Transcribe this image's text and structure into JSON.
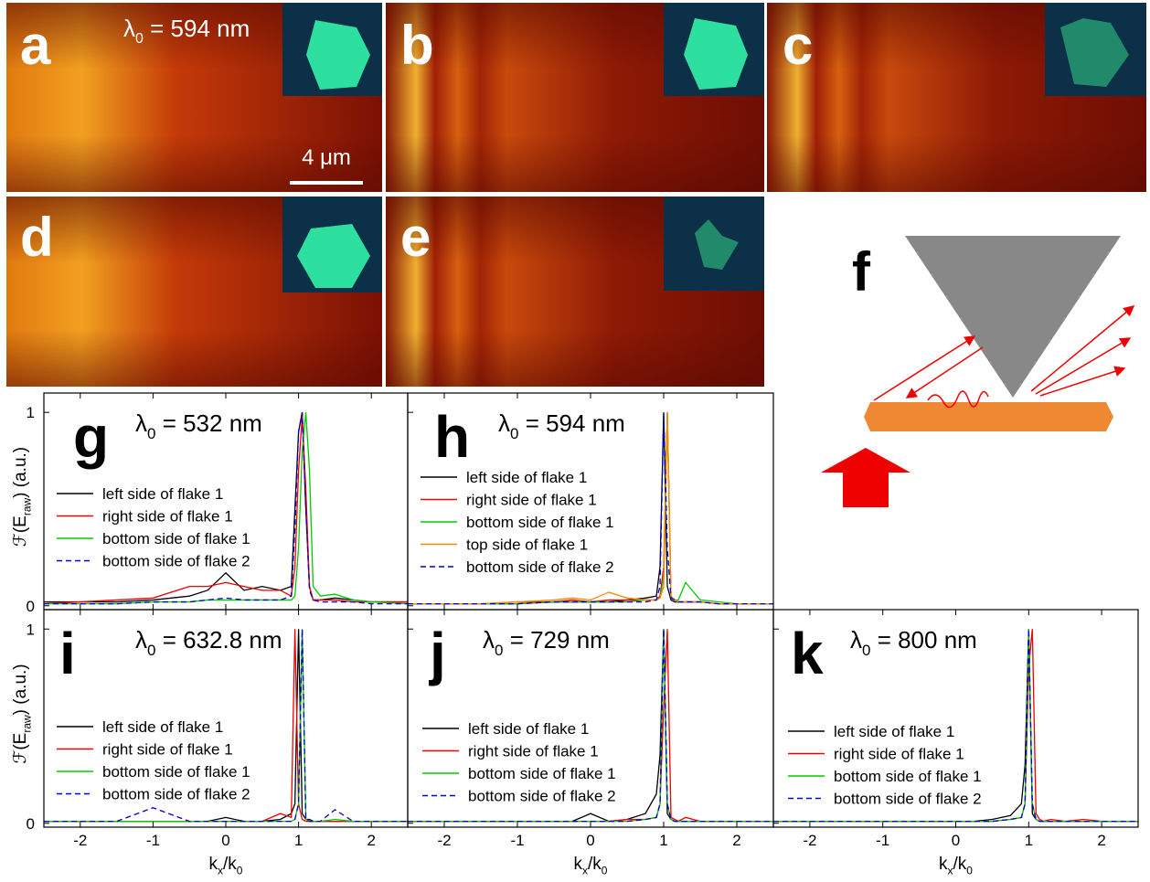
{
  "panels": [
    {
      "label": "a",
      "caption": [
        "λ",
        "0",
        " = 594 nm"
      ],
      "scale_bar": "4 μm"
    },
    {
      "label": "b"
    },
    {
      "label": "c"
    },
    {
      "label": "d"
    },
    {
      "label": "e"
    },
    {
      "label": "f"
    }
  ],
  "chart_data": [
    {
      "type": "line",
      "label": "g",
      "title": [
        "λ",
        "0",
        " = 532 nm"
      ],
      "ylabel": [
        "ℱ(E",
        "raw",
        ") (a.u.)"
      ],
      "xlim": [
        -2.5,
        2.5
      ],
      "ylim": [
        -0.02,
        1.1
      ],
      "xticks": [
        -2,
        -1,
        0,
        1,
        2
      ],
      "yticks": [
        0,
        1
      ],
      "xtick_labels": false,
      "ytick_labels": true,
      "x": [
        -2.5,
        -2,
        -1.5,
        -1,
        -0.5,
        -0.25,
        0,
        0.25,
        0.5,
        0.75,
        0.9,
        0.95,
        1,
        1.05,
        1.1,
        1.15,
        1.2,
        1.3,
        1.5,
        1.75,
        2,
        2.5
      ],
      "series": [
        {
          "name": "left side of flake 1",
          "color": "#000000",
          "style": "solid",
          "values": [
            0.02,
            0.02,
            0.02,
            0.03,
            0.05,
            0.08,
            0.17,
            0.08,
            0.1,
            0.08,
            0.1,
            0.5,
            0.9,
            1.0,
            0.5,
            0.1,
            0.03,
            0.03,
            0.04,
            0.03,
            0.02,
            0.02
          ]
        },
        {
          "name": "right side of flake 1",
          "color": "#ee0000",
          "style": "solid",
          "values": [
            0.01,
            0.02,
            0.03,
            0.04,
            0.1,
            0.1,
            0.12,
            0.1,
            0.08,
            0.08,
            0.05,
            0.2,
            0.7,
            0.98,
            0.6,
            0.1,
            0.03,
            0.03,
            0.03,
            0.02,
            0.02,
            0.02
          ]
        },
        {
          "name": "bottom side of flake 1",
          "color": "#00cc00",
          "style": "solid",
          "values": [
            0.01,
            0.01,
            0.01,
            0.02,
            0.02,
            0.03,
            0.03,
            0.03,
            0.03,
            0.03,
            0.03,
            0.05,
            0.3,
            0.8,
            1.0,
            0.7,
            0.1,
            0.05,
            0.06,
            0.03,
            0.02,
            0.01
          ]
        },
        {
          "name": "bottom side of flake 2",
          "color": "#0000cc",
          "style": "dashed",
          "values": [
            0.01,
            0.01,
            0.01,
            0.02,
            0.02,
            0.03,
            0.04,
            0.03,
            0.03,
            0.03,
            0.05,
            0.4,
            0.9,
            1.0,
            0.5,
            0.08,
            0.03,
            0.02,
            0.02,
            0.02,
            0.01,
            0.01
          ]
        }
      ]
    },
    {
      "type": "line",
      "label": "h",
      "title": [
        "λ",
        "0",
        " = 594 nm"
      ],
      "xlim": [
        -2.5,
        2.5
      ],
      "ylim": [
        -0.02,
        1.1
      ],
      "xticks": [
        -2,
        -1,
        0,
        1,
        2
      ],
      "yticks": [
        0,
        1
      ],
      "xtick_labels": false,
      "ytick_labels": false,
      "x": [
        -2.5,
        -2,
        -1.5,
        -1,
        -0.5,
        -0.25,
        0,
        0.25,
        0.5,
        0.75,
        0.9,
        0.95,
        1,
        1.05,
        1.1,
        1.15,
        1.2,
        1.3,
        1.5,
        1.75,
        2,
        2.5
      ],
      "series": [
        {
          "name": "left side of flake 1",
          "color": "#000000",
          "style": "solid",
          "values": [
            0.01,
            0.01,
            0.01,
            0.01,
            0.02,
            0.02,
            0.02,
            0.02,
            0.03,
            0.04,
            0.05,
            0.2,
            1.0,
            0.1,
            0.03,
            0.02,
            0.02,
            0.02,
            0.02,
            0.01,
            0.01,
            0.01
          ]
        },
        {
          "name": "right side of flake 1",
          "color": "#ee0000",
          "style": "solid",
          "values": [
            0.01,
            0.01,
            0.01,
            0.02,
            0.02,
            0.03,
            0.02,
            0.03,
            0.03,
            0.03,
            0.03,
            0.05,
            0.2,
            1.0,
            0.05,
            0.03,
            0.02,
            0.02,
            0.02,
            0.01,
            0.01,
            0.01
          ]
        },
        {
          "name": "bottom side of flake 1",
          "color": "#00cc00",
          "style": "solid",
          "values": [
            0.01,
            0.01,
            0.01,
            0.01,
            0.02,
            0.02,
            0.02,
            0.02,
            0.02,
            0.03,
            0.03,
            0.04,
            0.15,
            1.0,
            0.04,
            0.03,
            0.03,
            0.12,
            0.03,
            0.02,
            0.01,
            0.01
          ]
        },
        {
          "name": "top side of flake 1",
          "color": "#ff8800",
          "style": "solid",
          "values": [
            0.01,
            0.01,
            0.01,
            0.02,
            0.03,
            0.04,
            0.03,
            0.07,
            0.04,
            0.03,
            0.03,
            0.04,
            0.1,
            1.0,
            0.05,
            0.03,
            0.02,
            0.02,
            0.02,
            0.01,
            0.01,
            0.01
          ]
        },
        {
          "name": "bottom side of flake 2",
          "color": "#0000cc",
          "style": "dashed",
          "values": [
            0.01,
            0.01,
            0.01,
            0.01,
            0.02,
            0.02,
            0.02,
            0.02,
            0.02,
            0.02,
            0.03,
            0.1,
            1.0,
            0.3,
            0.04,
            0.03,
            0.02,
            0.02,
            0.02,
            0.01,
            0.01,
            0.01
          ]
        }
      ]
    },
    {
      "type": "line",
      "label": "i",
      "title": [
        "λ",
        "0",
        " = 632.8 nm"
      ],
      "ylabel": [
        "ℱ(E",
        "raw",
        ") (a.u.)"
      ],
      "xlabel": [
        "k",
        "x",
        "/k",
        "0"
      ],
      "xlim": [
        -2.5,
        2.5
      ],
      "ylim": [
        -0.02,
        1.1
      ],
      "xticks": [
        -2,
        -1,
        0,
        1,
        2
      ],
      "yticks": [
        0,
        1
      ],
      "xtick_labels": true,
      "ytick_labels": true,
      "x": [
        -2.5,
        -2,
        -1.5,
        -1,
        -0.5,
        -0.25,
        0,
        0.25,
        0.5,
        0.75,
        0.9,
        0.95,
        1,
        1.05,
        1.1,
        1.15,
        1.2,
        1.3,
        1.5,
        1.75,
        2,
        2.5
      ],
      "series": [
        {
          "name": "left side of flake 1",
          "color": "#000000",
          "style": "solid",
          "values": [
            0.01,
            0.01,
            0.01,
            0.01,
            0.01,
            0.01,
            0.03,
            0.01,
            0.01,
            0.02,
            0.05,
            0.1,
            1.0,
            0.05,
            0.02,
            0.02,
            0.01,
            0.01,
            0.01,
            0.01,
            0.01,
            0.01
          ]
        },
        {
          "name": "right side of flake 1",
          "color": "#ee0000",
          "style": "solid",
          "values": [
            0.01,
            0.01,
            0.01,
            0.01,
            0.01,
            0.01,
            0.01,
            0.01,
            0.01,
            0.05,
            0.03,
            1.0,
            0.1,
            0.02,
            0.01,
            0.01,
            0.01,
            0.01,
            0.01,
            0.01,
            0.01,
            0.01
          ]
        },
        {
          "name": "bottom side of flake 1",
          "color": "#00cc00",
          "style": "solid",
          "values": [
            0.01,
            0.01,
            0.01,
            0.01,
            0.01,
            0.01,
            0.01,
            0.01,
            0.01,
            0.01,
            0.01,
            0.02,
            0.1,
            1.0,
            0.02,
            0.01,
            0.01,
            0.01,
            0.02,
            0.01,
            0.01,
            0.01
          ]
        },
        {
          "name": "bottom side of flake 2",
          "color": "#0000cc",
          "style": "dashed",
          "values": [
            0.01,
            0.01,
            0.01,
            0.08,
            0.01,
            0.01,
            0.01,
            0.01,
            0.01,
            0.01,
            0.01,
            0.02,
            0.1,
            1.0,
            0.02,
            0.01,
            0.01,
            0.01,
            0.07,
            0.01,
            0.01,
            0.01
          ]
        }
      ]
    },
    {
      "type": "line",
      "label": "j",
      "title": [
        "λ",
        "0",
        " = 729 nm"
      ],
      "xlabel": [
        "k",
        "x",
        "/k",
        "0"
      ],
      "xlim": [
        -2.5,
        2.5
      ],
      "ylim": [
        -0.02,
        1.1
      ],
      "xticks": [
        -2,
        -1,
        0,
        1,
        2
      ],
      "yticks": [
        0,
        1
      ],
      "xtick_labels": true,
      "ytick_labels": false,
      "x": [
        -2.5,
        -2,
        -1.5,
        -1,
        -0.5,
        -0.25,
        0,
        0.25,
        0.5,
        0.75,
        0.9,
        0.95,
        1,
        1.05,
        1.1,
        1.15,
        1.2,
        1.3,
        1.5,
        1.75,
        2,
        2.5
      ],
      "series": [
        {
          "name": "left side of flake 1",
          "color": "#000000",
          "style": "solid",
          "values": [
            0.01,
            0.01,
            0.01,
            0.01,
            0.01,
            0.01,
            0.05,
            0.01,
            0.02,
            0.05,
            0.15,
            0.35,
            1.0,
            0.05,
            0.02,
            0.01,
            0.01,
            0.01,
            0.01,
            0.01,
            0.01,
            0.01
          ]
        },
        {
          "name": "right side of flake 1",
          "color": "#ee0000",
          "style": "solid",
          "values": [
            0.01,
            0.01,
            0.01,
            0.01,
            0.01,
            0.01,
            0.01,
            0.01,
            0.02,
            0.02,
            0.03,
            0.1,
            0.6,
            1.0,
            0.03,
            0.02,
            0.01,
            0.03,
            0.01,
            0.01,
            0.01,
            0.01
          ]
        },
        {
          "name": "bottom side of flake 1",
          "color": "#00cc00",
          "style": "solid",
          "values": [
            0.01,
            0.01,
            0.01,
            0.01,
            0.01,
            0.01,
            0.01,
            0.01,
            0.01,
            0.02,
            0.03,
            0.1,
            1.0,
            0.1,
            0.02,
            0.01,
            0.01,
            0.01,
            0.01,
            0.01,
            0.01,
            0.01
          ]
        },
        {
          "name": "bottom side of flake 2",
          "color": "#0000cc",
          "style": "dashed",
          "values": [
            0.01,
            0.01,
            0.01,
            0.01,
            0.01,
            0.01,
            0.01,
            0.01,
            0.01,
            0.02,
            0.03,
            0.1,
            1.0,
            0.1,
            0.02,
            0.01,
            0.01,
            0.01,
            0.01,
            0.01,
            0.01,
            0.01
          ]
        }
      ]
    },
    {
      "type": "line",
      "label": "k",
      "title": [
        "λ",
        "0",
        " = 800 nm"
      ],
      "xlabel": [
        "k",
        "x",
        "/k",
        "0"
      ],
      "xlim": [
        -2.5,
        2.5
      ],
      "ylim": [
        -0.02,
        1.1
      ],
      "xticks": [
        -2,
        -1,
        0,
        1,
        2
      ],
      "yticks": [
        0,
        1
      ],
      "xtick_labels": true,
      "ytick_labels": false,
      "x": [
        -2.5,
        -2,
        -1.5,
        -1,
        -0.5,
        -0.25,
        0,
        0.25,
        0.5,
        0.75,
        0.9,
        0.95,
        1,
        1.05,
        1.1,
        1.15,
        1.2,
        1.3,
        1.5,
        1.75,
        2,
        2.5
      ],
      "series": [
        {
          "name": "left side of flake 1",
          "color": "#000000",
          "style": "solid",
          "values": [
            0.01,
            0.01,
            0.01,
            0.01,
            0.01,
            0.01,
            0.01,
            0.01,
            0.02,
            0.04,
            0.1,
            0.3,
            1.0,
            0.05,
            0.02,
            0.01,
            0.01,
            0.01,
            0.01,
            0.01,
            0.01,
            0.01
          ]
        },
        {
          "name": "right side of flake 1",
          "color": "#ee0000",
          "style": "solid",
          "values": [
            0.01,
            0.01,
            0.01,
            0.01,
            0.01,
            0.01,
            0.01,
            0.01,
            0.01,
            0.02,
            0.03,
            0.1,
            0.8,
            1.0,
            0.05,
            0.02,
            0.01,
            0.02,
            0.01,
            0.02,
            0.01,
            0.01
          ]
        },
        {
          "name": "bottom side of flake 1",
          "color": "#00cc00",
          "style": "solid",
          "values": [
            0.01,
            0.01,
            0.01,
            0.01,
            0.01,
            0.01,
            0.01,
            0.01,
            0.01,
            0.02,
            0.03,
            0.1,
            1.0,
            0.1,
            0.02,
            0.01,
            0.01,
            0.01,
            0.01,
            0.01,
            0.01,
            0.01
          ]
        },
        {
          "name": "bottom side of flake 2",
          "color": "#0000cc",
          "style": "dashed",
          "values": [
            0.01,
            0.01,
            0.01,
            0.01,
            0.01,
            0.01,
            0.01,
            0.01,
            0.01,
            0.02,
            0.03,
            0.1,
            1.0,
            0.1,
            0.02,
            0.01,
            0.01,
            0.01,
            0.01,
            0.01,
            0.01,
            0.01
          ]
        }
      ]
    }
  ]
}
